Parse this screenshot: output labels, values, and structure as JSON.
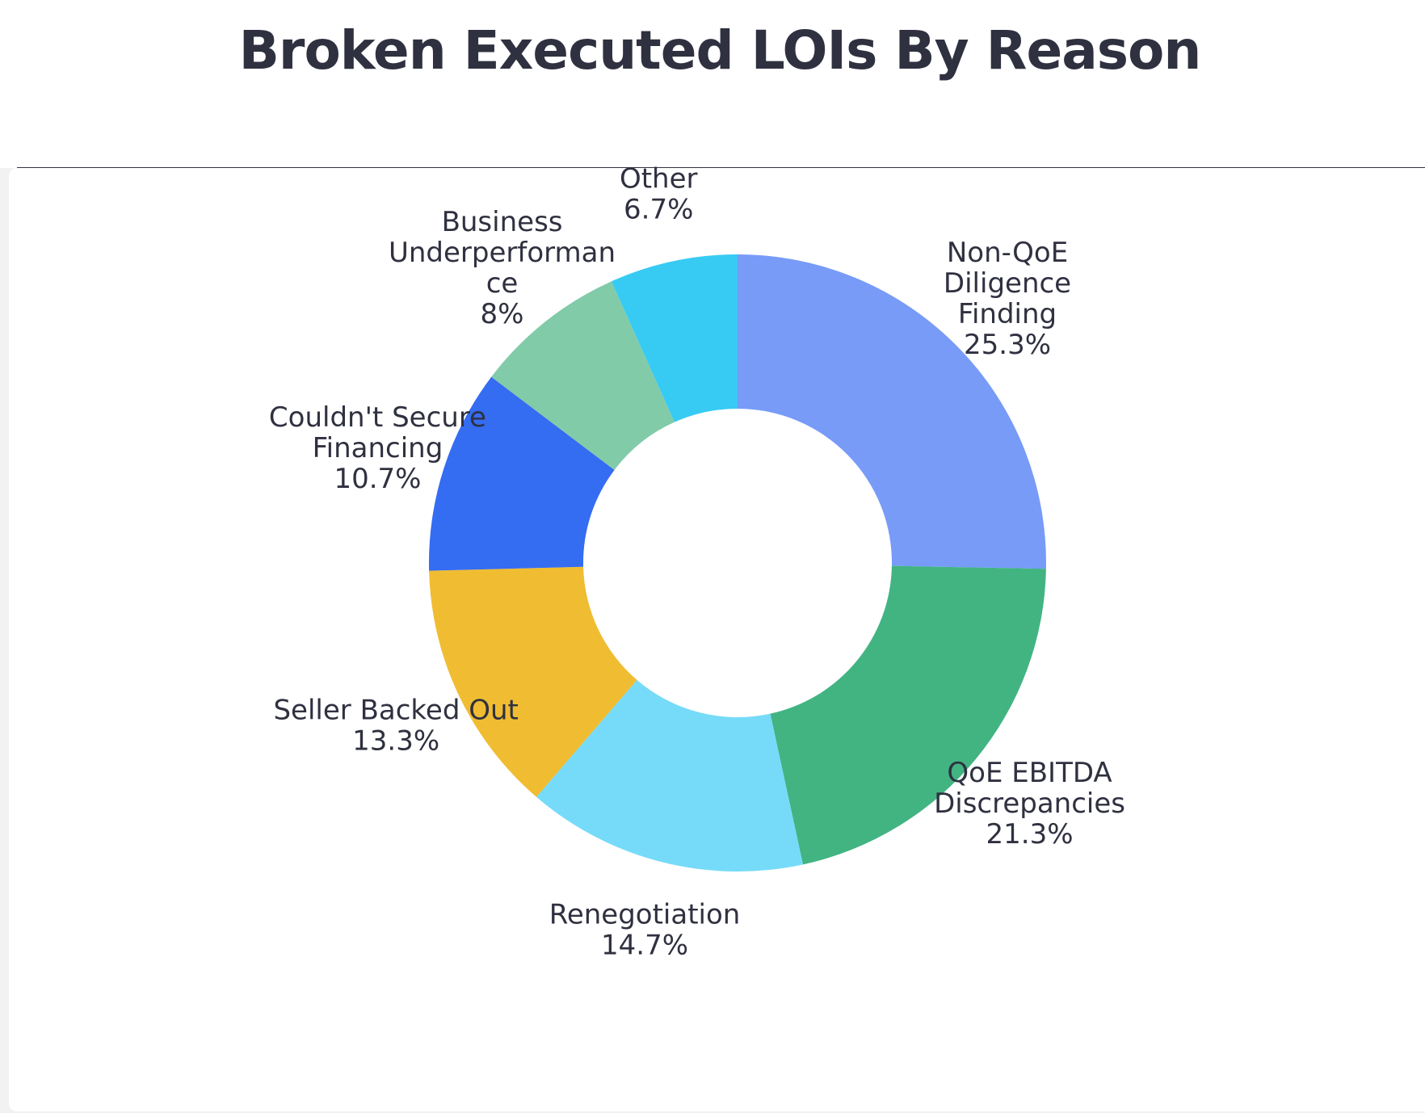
{
  "page": {
    "title": "Broken Executed LOIs By Reason"
  },
  "chart_data": {
    "type": "pie",
    "variant": "donut",
    "title": "Broken Executed LOIs By Reason",
    "legend": "none",
    "label_position": "outside",
    "unit": "%",
    "slices": [
      {
        "label_lines": [
          "Non-QoE",
          "Diligence",
          "Finding"
        ],
        "value": 25.3,
        "value_label": "25.3%",
        "color": "#779bf7"
      },
      {
        "label_lines": [
          "QoE EBITDA",
          "Discrepancies"
        ],
        "value": 21.3,
        "value_label": "21.3%",
        "color": "#41b482"
      },
      {
        "label_lines": [
          "Renegotiation"
        ],
        "value": 14.7,
        "value_label": "14.7%",
        "color": "#76dbf8"
      },
      {
        "label_lines": [
          "Seller Backed Out"
        ],
        "value": 13.3,
        "value_label": "13.3%",
        "color": "#f0bc31"
      },
      {
        "label_lines": [
          "Couldn't Secure",
          "Financing"
        ],
        "value": 10.7,
        "value_label": "10.7%",
        "color": "#346cf2"
      },
      {
        "label_lines": [
          "Business",
          "Underperforman",
          "ce"
        ],
        "value": 8.0,
        "value_label": "8%",
        "color": "#81cba9"
      },
      {
        "label_lines": [
          "Other"
        ],
        "value": 6.7,
        "value_label": "6.7%",
        "color": "#37cbf3"
      }
    ]
  }
}
